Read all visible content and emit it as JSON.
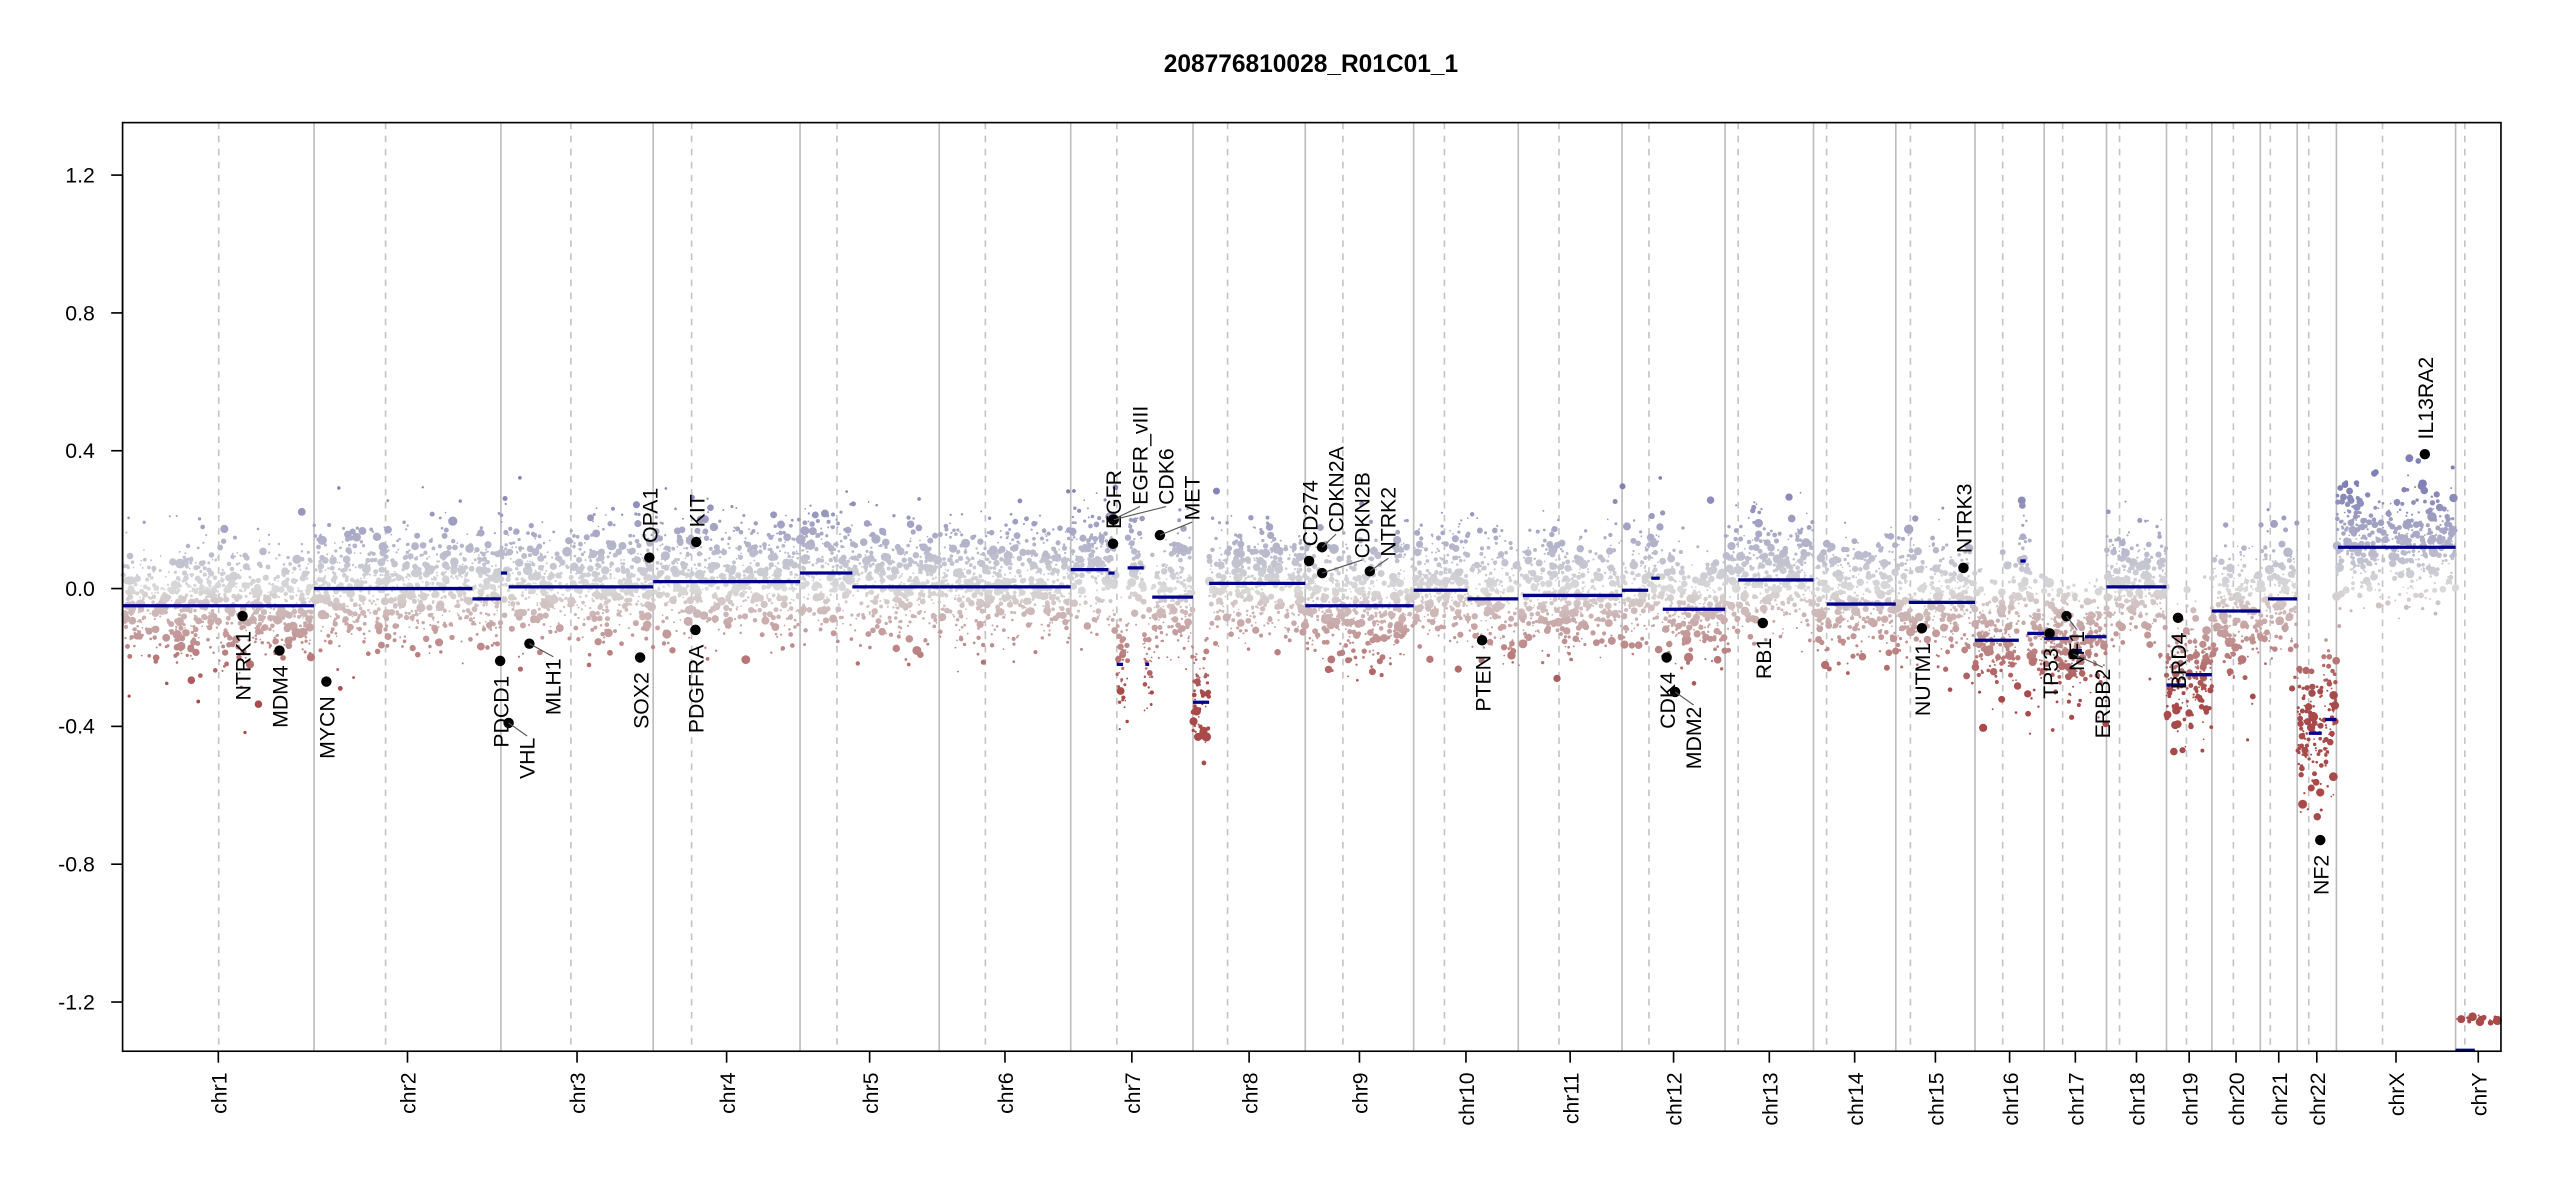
{
  "chart_data": {
    "type": "scatter",
    "title": "208776810028_R01C01_1",
    "xlabel": "",
    "ylabel": "",
    "ylim": [
      -1.35,
      1.35
    ],
    "yticks": [
      -1.2,
      -0.8,
      -0.4,
      0.0,
      0.4,
      0.8,
      1.2
    ],
    "ytick_labels": [
      "-1.2",
      "-0.8",
      "-0.4",
      "0.0",
      "0.4",
      "0.8",
      "1.2"
    ],
    "x_unit": "Mb",
    "chromosomes": [
      {
        "name": "chr1",
        "length": 249,
        "centromere": 125
      },
      {
        "name": "chr2",
        "length": 243,
        "centromere": 93
      },
      {
        "name": "chr3",
        "length": 198,
        "centromere": 91
      },
      {
        "name": "chr4",
        "length": 191,
        "centromere": 50
      },
      {
        "name": "chr5",
        "length": 181,
        "centromere": 48
      },
      {
        "name": "chr6",
        "length": 171,
        "centromere": 60
      },
      {
        "name": "chr7",
        "length": 159,
        "centromere": 60
      },
      {
        "name": "chr8",
        "length": 146,
        "centromere": 45
      },
      {
        "name": "chr9",
        "length": 141,
        "centromere": 49
      },
      {
        "name": "chr10",
        "length": 136,
        "centromere": 40
      },
      {
        "name": "chr11",
        "length": 135,
        "centromere": 53
      },
      {
        "name": "chr12",
        "length": 134,
        "centromere": 35
      },
      {
        "name": "chr13",
        "length": 115,
        "centromere": 17
      },
      {
        "name": "chr14",
        "length": 107,
        "centromere": 17
      },
      {
        "name": "chr15",
        "length": 103,
        "centromere": 19
      },
      {
        "name": "chr16",
        "length": 90,
        "centromere": 36
      },
      {
        "name": "chr17",
        "length": 81,
        "centromere": 24
      },
      {
        "name": "chr18",
        "length": 78,
        "centromere": 17
      },
      {
        "name": "chr19",
        "length": 59,
        "centromere": 26
      },
      {
        "name": "chr20",
        "length": 63,
        "centromere": 28
      },
      {
        "name": "chr21",
        "length": 48,
        "centromere": 13
      },
      {
        "name": "chr22",
        "length": 51,
        "centromere": 15
      },
      {
        "name": "chrX",
        "length": 155,
        "centromere": 60
      },
      {
        "name": "chrY",
        "length": 59,
        "centromere": 12
      }
    ],
    "segments": [
      {
        "chr": "chr1",
        "start": 0,
        "end": 249,
        "value": -0.05
      },
      {
        "chr": "chr2",
        "start": 0,
        "end": 206,
        "value": 0.0
      },
      {
        "chr": "chr2",
        "start": 206,
        "end": 243,
        "value": -0.03
      },
      {
        "chr": "chr3",
        "start": 0,
        "end": 8,
        "value": 0.045
      },
      {
        "chr": "chr3",
        "start": 10,
        "end": 198,
        "value": 0.005
      },
      {
        "chr": "chr4",
        "start": 0,
        "end": 191,
        "value": 0.02
      },
      {
        "chr": "chr5",
        "start": 0,
        "end": 68,
        "value": 0.045
      },
      {
        "chr": "chr5",
        "start": 68,
        "end": 181,
        "value": 0.005
      },
      {
        "chr": "chr6",
        "start": 0,
        "end": 171,
        "value": 0.005
      },
      {
        "chr": "chr7",
        "start": 0,
        "end": 49,
        "value": 0.055
      },
      {
        "chr": "chr7",
        "start": 49,
        "end": 57,
        "value": 0.045
      },
      {
        "chr": "chr7",
        "start": 60,
        "end": 68,
        "value": -0.22
      },
      {
        "chr": "chr7",
        "start": 74,
        "end": 95,
        "value": 0.06
      },
      {
        "chr": "chr7",
        "start": 97,
        "end": 102,
        "value": -0.22
      },
      {
        "chr": "chr7",
        "start": 106,
        "end": 159,
        "value": -0.025
      },
      {
        "chr": "chr8",
        "start": 0,
        "end": 21,
        "value": -0.33
      },
      {
        "chr": "chr8",
        "start": 21,
        "end": 146,
        "value": 0.015
      },
      {
        "chr": "chr9",
        "start": 0,
        "end": 141,
        "value": -0.05
      },
      {
        "chr": "chr10",
        "start": 0,
        "end": 70,
        "value": -0.005
      },
      {
        "chr": "chr10",
        "start": 70,
        "end": 136,
        "value": -0.03
      },
      {
        "chr": "chr11",
        "start": 6,
        "end": 135,
        "value": -0.02
      },
      {
        "chr": "chr12",
        "start": 0,
        "end": 34,
        "value": -0.005
      },
      {
        "chr": "chr12",
        "start": 38,
        "end": 49,
        "value": 0.03
      },
      {
        "chr": "chr12",
        "start": 53,
        "end": 134,
        "value": -0.06
      },
      {
        "chr": "chr13",
        "start": 17,
        "end": 115,
        "value": 0.025
      },
      {
        "chr": "chr14",
        "start": 17,
        "end": 107,
        "value": -0.045
      },
      {
        "chr": "chr15",
        "start": 17,
        "end": 103,
        "value": -0.04
      },
      {
        "chr": "chr16",
        "start": 0,
        "end": 57,
        "value": -0.15
      },
      {
        "chr": "chr16",
        "start": 59,
        "end": 66,
        "value": 0.08
      },
      {
        "chr": "chr16",
        "start": 68,
        "end": 90,
        "value": -0.13
      },
      {
        "chr": "chr17",
        "start": 0,
        "end": 32,
        "value": -0.145
      },
      {
        "chr": "chr17",
        "start": 38,
        "end": 49,
        "value": -0.18
      },
      {
        "chr": "chr17",
        "start": 53,
        "end": 81,
        "value": -0.14
      },
      {
        "chr": "chr18",
        "start": 0,
        "end": 78,
        "value": 0.005
      },
      {
        "chr": "chr19",
        "start": 0,
        "end": 25,
        "value": -0.28
      },
      {
        "chr": "chr19",
        "start": 25,
        "end": 59,
        "value": -0.25
      },
      {
        "chr": "chr20",
        "start": 0,
        "end": 63,
        "value": -0.065
      },
      {
        "chr": "chr21",
        "start": 10,
        "end": 48,
        "value": -0.03
      },
      {
        "chr": "chr22",
        "start": 15,
        "end": 32,
        "value": -0.42
      },
      {
        "chr": "chr22",
        "start": 36,
        "end": 51,
        "value": -0.38
      },
      {
        "chrom_note": "",
        "chr": "chrX",
        "start": 2,
        "end": 155,
        "value": 0.12
      },
      {
        "chr": "chrY",
        "start": 0,
        "end": 25,
        "value": -1.34
      }
    ],
    "genes": [
      {
        "name": "NTRK1",
        "chr": "chr1",
        "pos": 156,
        "value": -0.08
      },
      {
        "name": "MDM4",
        "chr": "chr1",
        "pos": 204,
        "value": -0.18
      },
      {
        "name": "MYCN",
        "chr": "chr2",
        "pos": 16,
        "value": -0.27
      },
      {
        "name": "PDCD1",
        "chr": "chr2",
        "pos": 242,
        "value": -0.21
      },
      {
        "name": "VHL",
        "chr": "chr3",
        "pos": 10,
        "value": -0.39
      },
      {
        "name": "MLH1",
        "chr": "chr3",
        "pos": 37,
        "value": -0.16
      },
      {
        "name": "SOX2",
        "chr": "chr3",
        "pos": 181,
        "value": -0.2
      },
      {
        "name": "OPA1",
        "chr": "chr3",
        "pos": 193,
        "value": 0.09
      },
      {
        "name": "PDGFRA",
        "chr": "chr4",
        "pos": 55,
        "value": -0.12
      },
      {
        "name": "KIT",
        "chr": "chr4",
        "pos": 56,
        "value": 0.135
      },
      {
        "name": "EGFR",
        "chr": "chr7",
        "pos": 55,
        "value": 0.13
      },
      {
        "name": "EGFR_vIII",
        "chr": "chr7",
        "pos": 55,
        "value": 0.2
      },
      {
        "name": "CDK6",
        "chr": "chr7",
        "pos": 56,
        "value": 0.2
      },
      {
        "name": "MET",
        "chr": "chr7",
        "pos": 116,
        "value": 0.155
      },
      {
        "name": "CD274",
        "chr": "chr9",
        "pos": 5,
        "value": 0.08
      },
      {
        "name": "CDKN2A",
        "chr": "chr9",
        "pos": 21.9,
        "value": 0.12
      },
      {
        "name": "CDKN2B",
        "chr": "chr9",
        "pos": 22,
        "value": 0.045
      },
      {
        "name": "NTRK2",
        "chr": "chr9",
        "pos": 84,
        "value": 0.05
      },
      {
        "name": "PTEN",
        "chr": "chr10",
        "pos": 89,
        "value": -0.15
      },
      {
        "name": "CDK4",
        "chr": "chr12",
        "pos": 58,
        "value": -0.2
      },
      {
        "name": "MDM2",
        "chr": "chr12",
        "pos": 69,
        "value": -0.3
      },
      {
        "name": "RB1",
        "chr": "chr13",
        "pos": 49,
        "value": -0.1
      },
      {
        "name": "NUTM1",
        "chr": "chr15",
        "pos": 34,
        "value": -0.115
      },
      {
        "name": "NTRK3",
        "chr": "chr15",
        "pos": 88,
        "value": 0.06
      },
      {
        "name": "TP53",
        "chr": "chr17",
        "pos": 7,
        "value": -0.13
      },
      {
        "name": "NF1",
        "chr": "chr17",
        "pos": 29,
        "value": -0.08
      },
      {
        "name": "ERBB2",
        "chr": "chr17",
        "pos": 38,
        "value": -0.19
      },
      {
        "name": "BRD4",
        "chr": "chr19",
        "pos": 15,
        "value": -0.085
      },
      {
        "name": "NF2",
        "chr": "chr22",
        "pos": 30,
        "value": -0.73
      },
      {
        "name": "IL13RA2",
        "chr": "chrX",
        "pos": 115,
        "value": 0.39
      }
    ],
    "grid": true,
    "colors": {
      "gain": "#7f7fb5",
      "neutral": "#d9d9d9",
      "loss": "#a84a4a",
      "segment": "#00008b",
      "gene": "#000000"
    }
  }
}
